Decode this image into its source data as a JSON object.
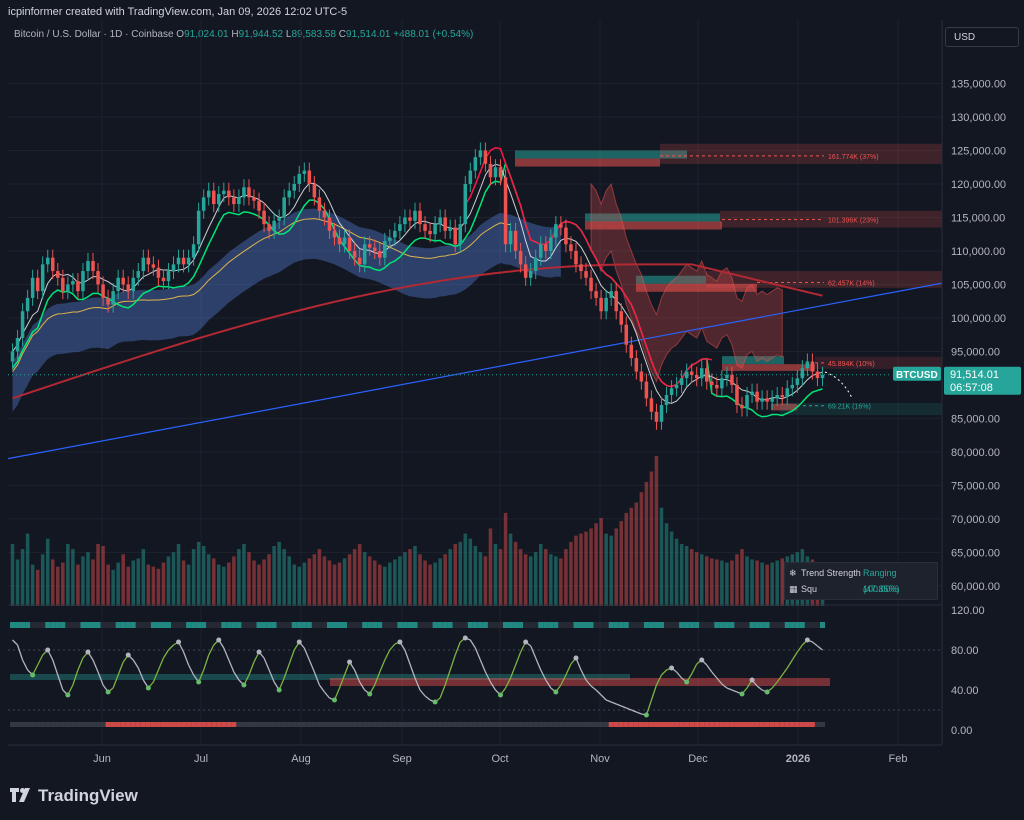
{
  "header": {
    "credit": "icpinformer created with TradingView.com, Jan 09, 2026 12:02 UTC-5",
    "symbol": "Bitcoin / U.S. Dollar · 1D · Coinbase",
    "open_label": "O",
    "open": "91,024.01",
    "high_label": "H",
    "high": "91,944.52",
    "low_label": "L",
    "low": "89,583.58",
    "close_label": "C",
    "close": "91,514.01",
    "change": "+488.01 (+0.54%)",
    "currency": "USD"
  },
  "price_badge": {
    "symbol": "BTCUSD",
    "price": "91,514.01",
    "countdown": "06:57:08"
  },
  "indicator_panel": {
    "row1_label": "Trend Strength",
    "row1_value": "Ranging (47.85%)",
    "row2_label": "Squ",
    "row2_value": "100.00%"
  },
  "logo": "TradingView",
  "colors": {
    "up": "#26a69a",
    "down": "#ef5350",
    "sma200": "#b22833",
    "trendline": "#2962ff",
    "ema": "#e0b44c",
    "supertrend_up": "#00e676",
    "supertrend_down": "#ff1744"
  },
  "chart_data": {
    "type": "candlestick",
    "x_axis": {
      "ticks": [
        "Jun",
        "Jul",
        "Aug",
        "Sep",
        "Oct",
        "Nov",
        "Dec",
        "2026",
        "Feb"
      ]
    },
    "price_axis": {
      "ticks": [
        "135,000.00",
        "130,000.00",
        "125,000.00",
        "120,000.00",
        "115,000.00",
        "110,000.00",
        "105,000.00",
        "100,000.00",
        "95,000.00",
        "85,000.00",
        "80,000.00",
        "75,000.00",
        "70,000.00",
        "65,000.00",
        "60,000.00"
      ],
      "range": [
        57000,
        140000
      ]
    },
    "oscillator_axis": {
      "ticks": [
        "120.00",
        "80.00",
        "40.00",
        "0.00"
      ],
      "range": [
        -15,
        125
      ]
    },
    "series": [
      {
        "name": "BTCUSD",
        "close": [
          95000,
          97000,
          101000,
          103000,
          106000,
          104000,
          108000,
          109000,
          107000,
          106000,
          104000,
          105000,
          105500,
          104000,
          107000,
          108500,
          107000,
          105000,
          103000,
          102000,
          104000,
          106000,
          105000,
          104000,
          106000,
          107000,
          109000,
          108000,
          107500,
          106000,
          105500,
          107000,
          108000,
          109000,
          108000,
          109000,
          111000,
          116000,
          118000,
          119000,
          117000,
          118500,
          119000,
          118000,
          117000,
          118000,
          119500,
          118000,
          117500,
          116000,
          114000,
          113000,
          114500,
          115000,
          118000,
          119000,
          120000,
          121500,
          122000,
          120000,
          118000,
          116000,
          115000,
          113000,
          112000,
          111000,
          112000,
          110000,
          109000,
          108000,
          111000,
          110500,
          110000,
          109000,
          111500,
          112000,
          113000,
          114000,
          115000,
          114500,
          116000,
          114000,
          113000,
          112500,
          114000,
          115000,
          113000,
          113500,
          111000,
          114000,
          120000,
          122000,
          124000,
          125000,
          123000,
          121000,
          122500,
          121000,
          111000,
          113000,
          110000,
          108000,
          106000,
          107000,
          109000,
          111000,
          110000,
          112000,
          114000,
          113500,
          111000,
          110000,
          108000,
          107000,
          106000,
          104000,
          103000,
          101000,
          103000,
          104000,
          101000,
          99000,
          96000,
          94000,
          92000,
          90500,
          88000,
          86000,
          84500,
          87000,
          88500,
          89500,
          90000,
          91000,
          92000,
          91500,
          91000,
          92500,
          90500,
          90000,
          89500,
          91000,
          91500,
          90000,
          87000,
          86500,
          88500,
          89000,
          87500,
          88000,
          87500,
          88000,
          88500,
          88200,
          89500,
          90000,
          91000,
          92500,
          93500,
          92000,
          91024,
          91514
        ]
      },
      {
        "name": "Volume",
        "values": [
          60,
          45,
          55,
          70,
          40,
          35,
          50,
          65,
          45,
          38,
          42,
          60,
          55,
          40,
          48,
          52,
          45,
          60,
          58,
          40,
          35,
          42,
          50,
          38,
          44,
          46,
          55,
          40,
          38,
          36,
          42,
          48,
          52,
          60,
          44,
          40,
          55,
          62,
          58,
          50,
          46,
          40,
          38,
          42,
          48,
          55,
          60,
          52,
          44,
          40,
          45,
          50,
          58,
          62,
          55,
          48,
          40,
          38,
          42,
          46,
          50,
          55,
          48,
          44,
          40,
          42,
          46,
          50,
          55,
          60,
          52,
          48,
          44,
          40,
          38,
          42,
          45,
          48,
          52,
          55,
          58,
          50,
          44,
          40,
          42,
          46,
          50,
          55,
          60,
          62,
          70,
          65,
          58,
          52,
          48,
          75,
          60,
          55,
          90,
          70,
          62,
          55,
          50,
          48,
          52,
          60,
          55,
          50,
          48,
          46,
          55,
          62,
          68,
          70,
          72,
          75,
          80,
          85,
          70,
          68,
          75,
          82,
          90,
          95,
          100,
          110,
          120,
          130,
          145,
          95,
          80,
          72,
          65,
          60,
          58,
          55,
          52,
          50,
          48,
          46,
          45,
          44,
          42,
          44,
          50,
          55,
          48,
          45,
          44,
          42,
          40,
          42,
          44,
          46,
          48,
          50,
          52,
          55,
          48,
          45,
          42,
          40
        ]
      },
      {
        "name": "Oscillator",
        "values": [
          90,
          85,
          70,
          60,
          55,
          65,
          75,
          80,
          70,
          55,
          40,
          35,
          45,
          60,
          72,
          78,
          70,
          58,
          45,
          38,
          42,
          55,
          68,
          75,
          70,
          62,
          50,
          42,
          48,
          60,
          72,
          80,
          85,
          88,
          78,
          65,
          55,
          48,
          60,
          75,
          85,
          90,
          82,
          70,
          58,
          50,
          45,
          55,
          68,
          78,
          72,
          60,
          48,
          40,
          52,
          66,
          80,
          88,
          82,
          70,
          58,
          45,
          38,
          32,
          30,
          42,
          55,
          68,
          60,
          48,
          40,
          36,
          45,
          58,
          70,
          80,
          86,
          88,
          80,
          66,
          52,
          40,
          34,
          30,
          28,
          32,
          45,
          60,
          75,
          88,
          92,
          90,
          82,
          70,
          58,
          48,
          40,
          35,
          42,
          52,
          65,
          78,
          88,
          84,
          72,
          60,
          50,
          42,
          38,
          45,
          55,
          66,
          72,
          60,
          50,
          44,
          40,
          35,
          30,
          28,
          26,
          24,
          22,
          20,
          18,
          16,
          15,
          30,
          45,
          55,
          60,
          62,
          58,
          52,
          48,
          56,
          66,
          70,
          65,
          58,
          52,
          46,
          42,
          40,
          38,
          36,
          42,
          50,
          44,
          40,
          38,
          42,
          48,
          55,
          62,
          70,
          78,
          85,
          90,
          88,
          84,
          80
        ]
      }
    ],
    "annotations": [
      "161.774K (37%)",
      "101.396K (23%)",
      "62.457K (14%)",
      "45.894K (10%)",
      "69.21K (16%)"
    ]
  }
}
